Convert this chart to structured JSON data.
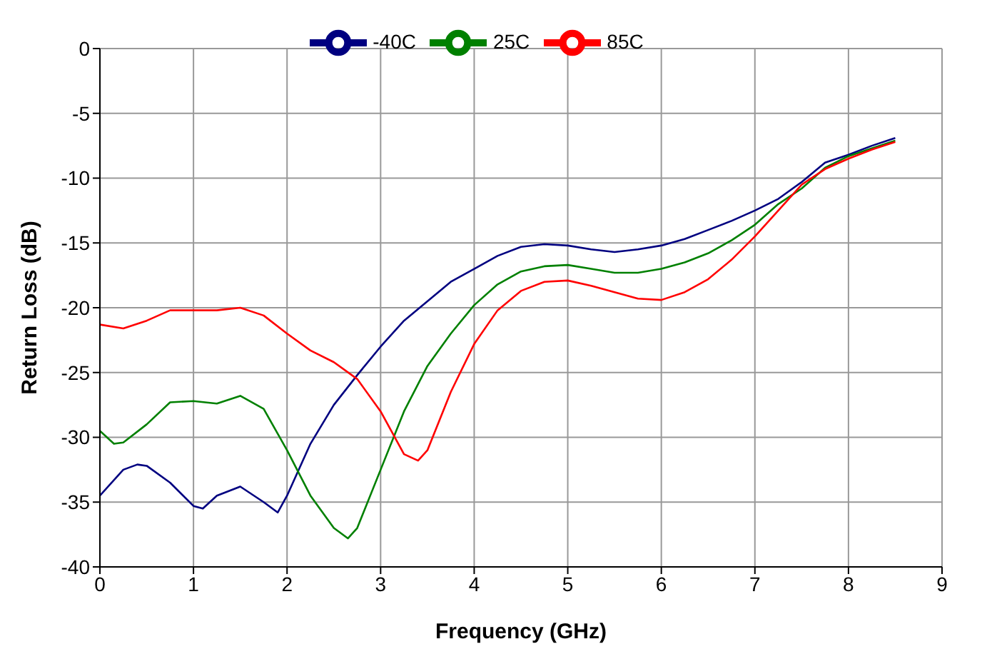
{
  "chart_data": {
    "type": "line",
    "xlabel": "Frequency (GHz)",
    "ylabel": "Return Loss (dB)",
    "xlim": [
      0,
      9
    ],
    "xticks": [
      0,
      1,
      2,
      3,
      4,
      5,
      6,
      7,
      8,
      9
    ],
    "ylim": [
      -40,
      0
    ],
    "yticks": [
      -40,
      -35,
      -30,
      -25,
      -20,
      -15,
      -10,
      -5,
      0
    ],
    "grid": true,
    "legend": "top",
    "marker": "none",
    "line_style": "solid",
    "series": [
      {
        "name": "-40C",
        "color": "#000080",
        "x": [
          0,
          0.25,
          0.4,
          0.5,
          0.75,
          1,
          1.1,
          1.25,
          1.5,
          1.75,
          1.9,
          2,
          2.25,
          2.5,
          2.75,
          3,
          3.25,
          3.5,
          3.75,
          4,
          4.25,
          4.5,
          4.75,
          5,
          5.25,
          5.5,
          5.75,
          6,
          6.25,
          6.5,
          6.75,
          7,
          7.25,
          7.5,
          7.75,
          8,
          8.25,
          8.5
        ],
        "values": [
          -34.5,
          -32.5,
          -32.1,
          -32.2,
          -33.5,
          -35.3,
          -35.5,
          -34.5,
          -33.8,
          -35,
          -35.8,
          -34.5,
          -30.5,
          -27.5,
          -25.2,
          -23,
          -21,
          -19.5,
          -18,
          -17,
          -16,
          -15.3,
          -15.1,
          -15.2,
          -15.5,
          -15.7,
          -15.5,
          -15.2,
          -14.7,
          -14,
          -13.3,
          -12.5,
          -11.6,
          -10.3,
          -8.8,
          -8.2,
          -7.5,
          -6.9
        ]
      },
      {
        "name": "25C",
        "color": "#008000",
        "x": [
          0,
          0.15,
          0.25,
          0.5,
          0.75,
          1,
          1.25,
          1.5,
          1.75,
          2,
          2.25,
          2.5,
          2.65,
          2.75,
          3,
          3.25,
          3.5,
          3.75,
          4,
          4.25,
          4.5,
          4.75,
          5,
          5.25,
          5.5,
          5.75,
          6,
          6.25,
          6.5,
          6.75,
          7,
          7.25,
          7.5,
          7.75,
          8,
          8.25,
          8.5
        ],
        "values": [
          -29.5,
          -30.5,
          -30.4,
          -29,
          -27.3,
          -27.2,
          -27.4,
          -26.8,
          -27.8,
          -31,
          -34.5,
          -37,
          -37.8,
          -37,
          -32.5,
          -28,
          -24.5,
          -22,
          -19.8,
          -18.2,
          -17.2,
          -16.8,
          -16.7,
          -17,
          -17.3,
          -17.3,
          -17,
          -16.5,
          -15.8,
          -14.8,
          -13.6,
          -12,
          -10.8,
          -9.2,
          -8.3,
          -7.7,
          -7.1
        ]
      },
      {
        "name": "85C",
        "color": "#ff0000",
        "x": [
          0,
          0.25,
          0.5,
          0.75,
          1,
          1.25,
          1.5,
          1.75,
          2,
          2.25,
          2.5,
          2.75,
          3,
          3.25,
          3.4,
          3.5,
          3.75,
          4,
          4.25,
          4.5,
          4.75,
          5,
          5.25,
          5.5,
          5.75,
          6,
          6.25,
          6.5,
          6.75,
          7,
          7.25,
          7.5,
          7.75,
          8,
          8.25,
          8.5
        ],
        "values": [
          -21.3,
          -21.6,
          -21,
          -20.2,
          -20.2,
          -20.2,
          -20,
          -20.6,
          -22,
          -23.3,
          -24.2,
          -25.5,
          -28,
          -31.3,
          -31.8,
          -31,
          -26.5,
          -22.8,
          -20.2,
          -18.7,
          -18,
          -17.9,
          -18.3,
          -18.8,
          -19.3,
          -19.4,
          -18.8,
          -17.8,
          -16.3,
          -14.5,
          -12.5,
          -10.5,
          -9.3,
          -8.5,
          -7.8,
          -7.2
        ]
      }
    ]
  }
}
